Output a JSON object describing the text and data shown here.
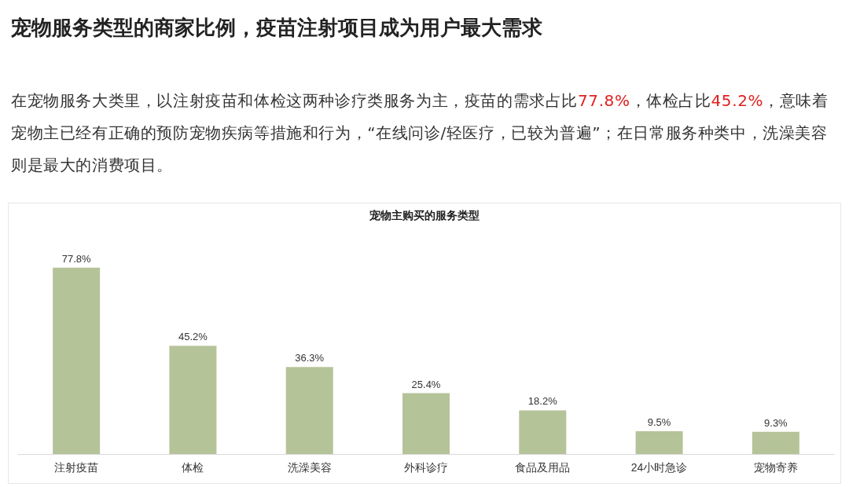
{
  "chart_data": {
    "type": "bar",
    "title": "宠物服务类型的商家比例，疫苗注射项目成为用户最大需求",
    "subtitle": "在宠物服务大类里，以注射疫苗和体检这两种诊疗类服务为主，疫苗的需求占比77.8%，体检占比45.2%，意味着宠物主已经有正确的预防宠物疾病等措施和行为，“在线问诊/轻医疗，已较为普遍”；在日常服务种类中，洗澡美容则是最大的消费项目。",
    "annotations": [
      "宠物主购买的服务类型"
    ],
    "categories": [
      "注射疫苗",
      "体检",
      "洗澡美容",
      "外科诊疗",
      "食品及用品",
      "24小时急诊",
      "宠物寄养"
    ],
    "values": [
      77.8,
      45.2,
      36.3,
      25.4,
      18.2,
      9.5,
      9.3
    ],
    "value_labels": [
      "77.8%",
      "45.2%",
      "36.3%",
      "25.4%",
      "18.2%",
      "9.5%",
      "9.3%"
    ],
    "color": "#b5c399",
    "grid": false
  }
}
